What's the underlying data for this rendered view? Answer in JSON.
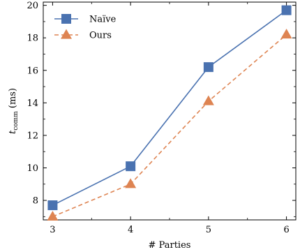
{
  "chart_data": {
    "type": "line",
    "xlabel": "# Parties",
    "ylabel": "t",
    "ylabel_sub": "comm",
    "ylabel_unit": " (ms)",
    "x": [
      3,
      4,
      5,
      6
    ],
    "xticks": [
      3,
      4,
      5,
      6
    ],
    "yticks": [
      8,
      10,
      12,
      14,
      16,
      18,
      20
    ],
    "xlim": [
      2.88,
      6.12
    ],
    "ylim": [
      6.8,
      20.2
    ],
    "legend_position": "top-left",
    "series": [
      {
        "name": "Naïve",
        "values": [
          7.7,
          10.1,
          16.2,
          19.7
        ],
        "color": "#4a72b0",
        "marker": "square",
        "linestyle": "solid"
      },
      {
        "name": "Ours",
        "values": [
          7.0,
          9.0,
          14.1,
          18.2
        ],
        "color": "#de8452",
        "marker": "triangle",
        "linestyle": "dashed"
      }
    ]
  }
}
